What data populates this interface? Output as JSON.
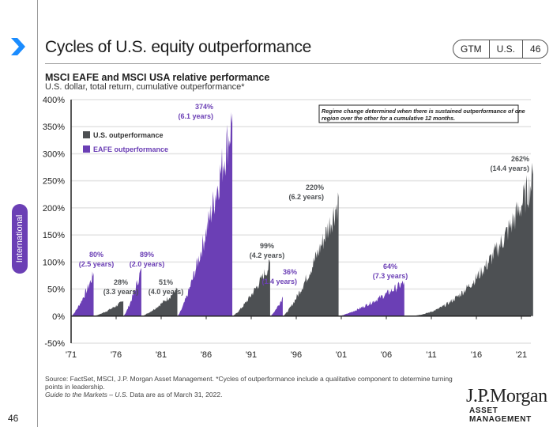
{
  "header": {
    "title": "Cycles of U.S. equity outperformance",
    "pill": [
      "GTM",
      "U.S.",
      "46"
    ],
    "subtitle": "MSCI EAFE and MSCI USA relative performance",
    "subtitle2": "U.S. dollar, total return, cumulative outperformance*"
  },
  "side_tab": "International",
  "page_number": "46",
  "footer": {
    "source": "Source: FactSet, MSCI, J.P. Morgan Asset Management. *Cycles of outperformance include a qualitative component to determine turning points in leadership.",
    "guide_italic": "Guide to the Markets – U.S.",
    "guide_rest": " Data are as of March 31, 2022."
  },
  "logo": {
    "name": "J.P.Morgan",
    "sub": "ASSET MANAGEMENT"
  },
  "colors": {
    "us": "#4d5053",
    "eafe": "#6b3fb5",
    "accent": "#1a8cff"
  },
  "chart_data": {
    "type": "area",
    "title": "MSCI EAFE and MSCI USA relative performance",
    "ylabel": "U.S. dollar, total return, cumulative outperformance",
    "ylim": [
      -50,
      400
    ],
    "yticks": [
      -50,
      0,
      50,
      100,
      150,
      200,
      250,
      300,
      350,
      400
    ],
    "ytick_labels": [
      "-50%",
      "0%",
      "50%",
      "100%",
      "150%",
      "200%",
      "250%",
      "300%",
      "350%",
      "400%"
    ],
    "xlim": [
      1971,
      2022.3
    ],
    "xticks": [
      1971,
      1976,
      1981,
      1986,
      1991,
      1996,
      2001,
      2006,
      2011,
      2016,
      2021
    ],
    "xtick_labels": [
      "'71",
      "'76",
      "'81",
      "'86",
      "'91",
      "'96",
      "'01",
      "'06",
      "'11",
      "'16",
      "'21"
    ],
    "grid": true,
    "legend": {
      "position": "top-left",
      "entries": [
        {
          "name": "U.S. outperformance",
          "color": "#4d5053"
        },
        {
          "name": "EAFE outperformance",
          "color": "#6b3fb5"
        }
      ]
    },
    "note": "Regime change determined when there is sustained outperformance of one region over the other for a cumulative 12 months.",
    "episodes": [
      {
        "region": "EAFE",
        "start": 1971.0,
        "end": 1973.5,
        "peak": 80,
        "label": "80%",
        "duration": "(2.5 years)"
      },
      {
        "region": "US",
        "start": 1973.5,
        "end": 1976.8,
        "peak": 28,
        "label": "28%",
        "duration": "(3.3 years)"
      },
      {
        "region": "EAFE",
        "start": 1976.8,
        "end": 1978.8,
        "peak": 89,
        "label": "89%",
        "duration": "(2.0 years)"
      },
      {
        "region": "US",
        "start": 1978.8,
        "end": 1982.8,
        "peak": 51,
        "label": "51%",
        "duration": "(4.0 years)"
      },
      {
        "region": "EAFE",
        "start": 1982.8,
        "end": 1988.9,
        "peak": 374,
        "label": "374%",
        "duration": "(6.1 years)"
      },
      {
        "region": "US",
        "start": 1988.9,
        "end": 1993.1,
        "peak": 99,
        "label": "99%",
        "duration": "(4.2 years)"
      },
      {
        "region": "EAFE",
        "start": 1993.1,
        "end": 1994.5,
        "peak": 36,
        "label": "36%",
        "duration": "(1.4 years)"
      },
      {
        "region": "US",
        "start": 1994.5,
        "end": 2000.7,
        "peak": 220,
        "label": "220%",
        "duration": "(6.2 years)"
      },
      {
        "region": "EAFE",
        "start": 2000.7,
        "end": 2008.0,
        "peak": 64,
        "label": "64%",
        "duration": "(7.3 years)"
      },
      {
        "region": "US",
        "start": 2008.0,
        "end": 2022.3,
        "peak": 262,
        "label": "262%",
        "duration": "(14.4 years)"
      }
    ]
  }
}
